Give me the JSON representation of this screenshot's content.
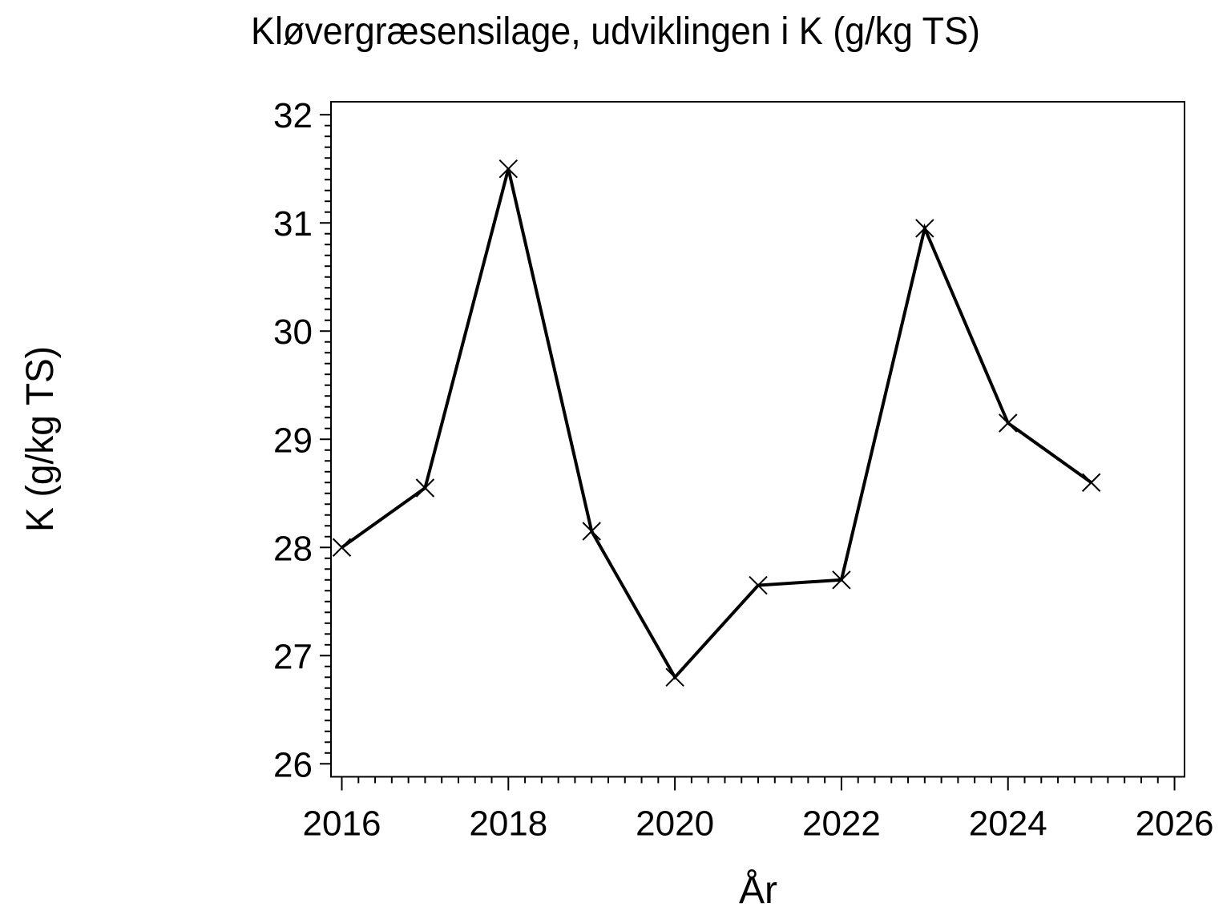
{
  "page": {
    "background_color": "#ffffff",
    "foreground_color": "#000000"
  },
  "chart_data": {
    "type": "line",
    "title": "Kløvergræsensilage, udviklingen i K (g/kg TS)",
    "xlabel": "År",
    "ylabel": "K (g/kg TS)",
    "x": [
      2016,
      2017,
      2018,
      2019,
      2020,
      2021,
      2022,
      2023,
      2024,
      2025
    ],
    "series": [
      {
        "name": "K (g/kg TS)",
        "values": [
          28.0,
          28.55,
          31.5,
          28.15,
          26.8,
          27.65,
          27.7,
          30.95,
          29.15,
          28.6
        ]
      }
    ],
    "marker": "x",
    "line_color": "#000000",
    "marker_color": "#000000",
    "xlim": [
      2015.87,
      2026.12
    ],
    "ylim": [
      25.88,
      32.12
    ],
    "x_major_ticks": [
      2016,
      2018,
      2020,
      2022,
      2024,
      2026
    ],
    "x_tick_labels": [
      "2016",
      "2018",
      "2020",
      "2022",
      "2024",
      "2026"
    ],
    "x_minor_step": 0.2,
    "y_major_ticks": [
      26,
      27,
      28,
      29,
      30,
      31,
      32
    ],
    "y_tick_labels": [
      "26",
      "27",
      "28",
      "29",
      "30",
      "31",
      "32"
    ],
    "y_minor_step": 0.1,
    "grid": false,
    "legend_position": "none"
  }
}
